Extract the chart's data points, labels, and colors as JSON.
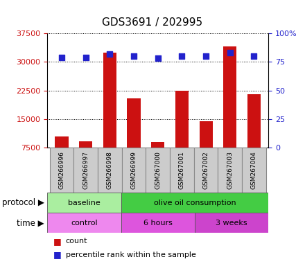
{
  "title": "GDS3691 / 202995",
  "samples": [
    "GSM266996",
    "GSM266997",
    "GSM266998",
    "GSM266999",
    "GSM267000",
    "GSM267001",
    "GSM267002",
    "GSM267003",
    "GSM267004"
  ],
  "counts": [
    10500,
    9200,
    32500,
    20500,
    9000,
    22500,
    14500,
    34000,
    21500
  ],
  "percentile_ranks": [
    79,
    79,
    82,
    80,
    78,
    80,
    80,
    83,
    80
  ],
  "ylim_left": [
    7500,
    37500
  ],
  "yticks_left": [
    7500,
    15000,
    22500,
    30000,
    37500
  ],
  "ylim_right": [
    0,
    100
  ],
  "yticks_right": [
    0,
    25,
    50,
    75,
    100
  ],
  "bar_color": "#cc1111",
  "dot_color": "#2222cc",
  "protocol_groups": [
    {
      "label": "baseline",
      "start": 0,
      "end": 3,
      "color": "#aaeea0"
    },
    {
      "label": "olive oil consumption",
      "start": 3,
      "end": 9,
      "color": "#44cc44"
    }
  ],
  "time_groups": [
    {
      "label": "control",
      "start": 0,
      "end": 3,
      "color": "#ee88ee"
    },
    {
      "label": "6 hours",
      "start": 3,
      "end": 6,
      "color": "#dd55dd"
    },
    {
      "label": "3 weeks",
      "start": 6,
      "end": 9,
      "color": "#cc44cc"
    }
  ],
  "legend_count_label": "count",
  "legend_pct_label": "percentile rank within the sample",
  "protocol_label": "protocol",
  "time_label": "time",
  "left_axis_color": "#cc1111",
  "right_axis_color": "#2222cc",
  "sample_box_color": "#cccccc",
  "box_border_color": "#888888"
}
